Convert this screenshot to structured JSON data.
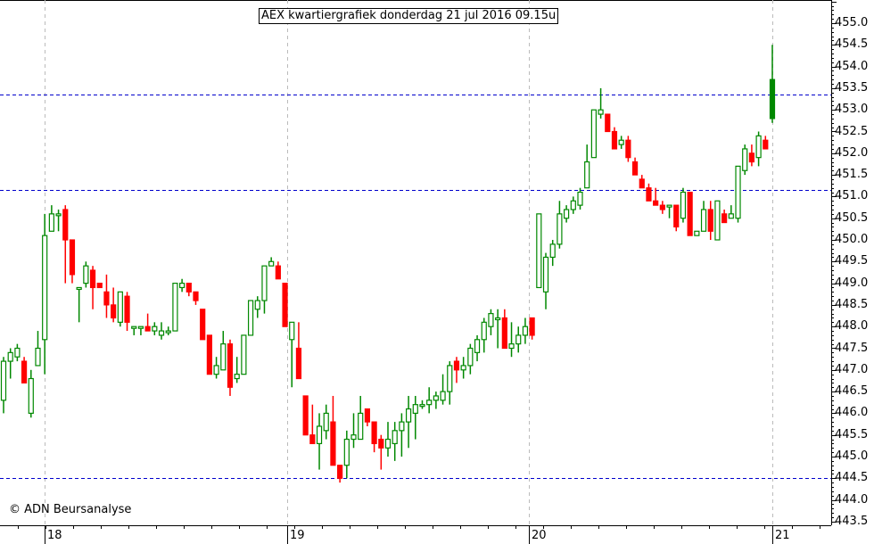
{
  "chart_data": {
    "type": "candlestick",
    "title": "AEX kwartiergrafiek donderdag 21 jul 2016 09.15u",
    "xlabel": "",
    "ylabel": "",
    "ylim": [
      443.3,
      455.5
    ],
    "y_ticks": [
      "455.0",
      "454.5",
      "454.0",
      "453.5",
      "453.0",
      "452.5",
      "452.0",
      "451.5",
      "451.0",
      "450.5",
      "450.0",
      "449.5",
      "449.0",
      "448.5",
      "448.0",
      "447.5",
      "447.0",
      "446.5",
      "446.0",
      "445.5",
      "445.0",
      "444.5",
      "444.0",
      "443.5"
    ],
    "x_ticks": [
      "18",
      "19",
      "20",
      "21"
    ],
    "horizontal_lines": [
      453.35,
      451.15,
      444.5
    ],
    "grid": "vertical dashed at day boundaries",
    "up_color": "#008800",
    "down_color": "#ff0000",
    "line_color": "#0000cc",
    "candles": [
      {
        "o": 446.3,
        "h": 447.3,
        "l": 446.0,
        "c": 447.2
      },
      {
        "o": 447.2,
        "h": 447.5,
        "l": 446.8,
        "c": 447.4
      },
      {
        "o": 447.3,
        "h": 447.6,
        "l": 447.2,
        "c": 447.5
      },
      {
        "o": 447.2,
        "h": 447.3,
        "l": 446.7,
        "c": 446.7
      },
      {
        "o": 446.0,
        "h": 447.0,
        "l": 445.9,
        "c": 446.8
      },
      {
        "o": 447.1,
        "h": 447.9,
        "l": 447.1,
        "c": 447.5
      },
      {
        "o": 447.7,
        "h": 450.6,
        "l": 446.9,
        "c": 450.1
      },
      {
        "o": 450.2,
        "h": 450.8,
        "l": 450.2,
        "c": 450.6
      },
      {
        "o": 450.6,
        "h": 450.7,
        "l": 450.2,
        "c": 450.6
      },
      {
        "o": 450.7,
        "h": 450.8,
        "l": 449.0,
        "c": 450.0
      },
      {
        "o": 450.0,
        "h": 449.5,
        "l": 449.0,
        "c": 449.2
      },
      {
        "o": 448.9,
        "h": 448.9,
        "l": 448.1,
        "c": 448.9
      },
      {
        "o": 449.0,
        "h": 449.5,
        "l": 448.9,
        "c": 449.4
      },
      {
        "o": 449.3,
        "h": 449.4,
        "l": 448.4,
        "c": 448.9
      },
      {
        "o": 449.0,
        "h": 449.0,
        "l": 448.9,
        "c": 448.9
      },
      {
        "o": 448.8,
        "h": 449.2,
        "l": 448.2,
        "c": 448.5
      },
      {
        "o": 448.5,
        "h": 448.9,
        "l": 448.1,
        "c": 448.2
      },
      {
        "o": 448.1,
        "h": 448.7,
        "l": 448.0,
        "c": 448.8
      },
      {
        "o": 448.7,
        "h": 448.8,
        "l": 447.9,
        "c": 448.1
      },
      {
        "o": 448.0,
        "h": 448.0,
        "l": 447.8,
        "c": 448.0
      },
      {
        "o": 448.0,
        "h": 448.0,
        "l": 447.8,
        "c": 448.0
      },
      {
        "o": 448.0,
        "h": 448.3,
        "l": 447.9,
        "c": 447.9
      },
      {
        "o": 447.9,
        "h": 448.1,
        "l": 447.8,
        "c": 448.0
      },
      {
        "o": 447.8,
        "h": 448.1,
        "l": 447.7,
        "c": 447.9
      },
      {
        "o": 447.9,
        "h": 448.0,
        "l": 447.8,
        "c": 447.9
      },
      {
        "o": 447.9,
        "h": 449.0,
        "l": 447.9,
        "c": 449.0
      },
      {
        "o": 448.9,
        "h": 449.1,
        "l": 448.8,
        "c": 449.0
      },
      {
        "o": 449.0,
        "h": 449.0,
        "l": 448.7,
        "c": 448.8
      },
      {
        "o": 448.8,
        "h": 448.8,
        "l": 448.5,
        "c": 448.6
      },
      {
        "o": 448.4,
        "h": 448.4,
        "l": 447.7,
        "c": 447.7
      },
      {
        "o": 447.8,
        "h": 447.8,
        "l": 446.9,
        "c": 446.9
      },
      {
        "o": 446.9,
        "h": 447.3,
        "l": 446.8,
        "c": 447.1
      },
      {
        "o": 447.0,
        "h": 447.9,
        "l": 447.0,
        "c": 447.6
      },
      {
        "o": 447.6,
        "h": 447.7,
        "l": 446.4,
        "c": 446.6
      },
      {
        "o": 446.8,
        "h": 447.3,
        "l": 446.7,
        "c": 446.9
      },
      {
        "o": 446.9,
        "h": 447.8,
        "l": 446.9,
        "c": 447.8
      },
      {
        "o": 447.8,
        "h": 448.6,
        "l": 447.8,
        "c": 448.6
      },
      {
        "o": 448.4,
        "h": 448.7,
        "l": 448.2,
        "c": 448.6
      },
      {
        "o": 448.6,
        "h": 449.4,
        "l": 448.3,
        "c": 449.4
      },
      {
        "o": 449.4,
        "h": 449.6,
        "l": 449.4,
        "c": 449.5
      },
      {
        "o": 449.4,
        "h": 449.5,
        "l": 449.1,
        "c": 449.1
      },
      {
        "o": 449.0,
        "h": 449.0,
        "l": 448.0,
        "c": 448.0
      },
      {
        "o": 447.7,
        "h": 447.7,
        "l": 446.6,
        "c": 448.1
      },
      {
        "o": 447.5,
        "h": 448.1,
        "l": 446.8,
        "c": 446.8
      },
      {
        "o": 446.4,
        "h": 446.4,
        "l": 445.5,
        "c": 445.5
      },
      {
        "o": 445.5,
        "h": 446.2,
        "l": 445.5,
        "c": 445.3
      },
      {
        "o": 445.3,
        "h": 446.0,
        "l": 444.7,
        "c": 445.7
      },
      {
        "o": 445.6,
        "h": 446.2,
        "l": 445.4,
        "c": 446.0
      },
      {
        "o": 445.8,
        "h": 446.4,
        "l": 444.9,
        "c": 444.8
      },
      {
        "o": 444.8,
        "h": 444.8,
        "l": 444.4,
        "c": 444.5
      },
      {
        "o": 444.8,
        "h": 445.6,
        "l": 444.5,
        "c": 445.4
      },
      {
        "o": 445.4,
        "h": 446.0,
        "l": 445.2,
        "c": 445.5
      },
      {
        "o": 445.4,
        "h": 446.4,
        "l": 445.4,
        "c": 446.0
      },
      {
        "o": 446.1,
        "h": 446.1,
        "l": 445.7,
        "c": 445.8
      },
      {
        "o": 445.8,
        "h": 445.8,
        "l": 445.1,
        "c": 445.3
      },
      {
        "o": 445.4,
        "h": 445.5,
        "l": 444.7,
        "c": 445.2
      },
      {
        "o": 445.2,
        "h": 445.8,
        "l": 445.0,
        "c": 445.4
      },
      {
        "o": 445.3,
        "h": 445.8,
        "l": 444.9,
        "c": 445.6
      },
      {
        "o": 445.6,
        "h": 446.0,
        "l": 445.0,
        "c": 445.8
      },
      {
        "o": 445.8,
        "h": 446.4,
        "l": 445.2,
        "c": 446.1
      },
      {
        "o": 446.0,
        "h": 446.4,
        "l": 445.4,
        "c": 446.2
      },
      {
        "o": 446.2,
        "h": 446.3,
        "l": 446.1,
        "c": 446.2
      },
      {
        "o": 446.2,
        "h": 446.6,
        "l": 446.0,
        "c": 446.3
      },
      {
        "o": 446.3,
        "h": 446.5,
        "l": 446.1,
        "c": 446.4
      },
      {
        "o": 446.3,
        "h": 446.9,
        "l": 446.2,
        "c": 446.5
      },
      {
        "o": 446.5,
        "h": 447.2,
        "l": 446.2,
        "c": 447.1
      },
      {
        "o": 447.2,
        "h": 447.3,
        "l": 446.7,
        "c": 447.0
      },
      {
        "o": 447.0,
        "h": 447.3,
        "l": 446.8,
        "c": 447.1
      },
      {
        "o": 447.1,
        "h": 447.6,
        "l": 446.9,
        "c": 447.5
      },
      {
        "o": 447.4,
        "h": 447.8,
        "l": 447.2,
        "c": 447.7
      },
      {
        "o": 447.7,
        "h": 448.2,
        "l": 447.4,
        "c": 448.1
      },
      {
        "o": 448.0,
        "h": 448.4,
        "l": 447.8,
        "c": 448.3
      },
      {
        "o": 448.2,
        "h": 448.4,
        "l": 447.5,
        "c": 448.2
      },
      {
        "o": 448.2,
        "h": 448.4,
        "l": 447.6,
        "c": 447.5
      },
      {
        "o": 447.5,
        "h": 448.1,
        "l": 447.3,
        "c": 447.6
      },
      {
        "o": 447.6,
        "h": 448.0,
        "l": 447.4,
        "c": 447.8
      },
      {
        "o": 447.8,
        "h": 448.2,
        "l": 447.6,
        "c": 448.0
      },
      {
        "o": 448.2,
        "h": 448.2,
        "l": 447.7,
        "c": 447.8
      },
      {
        "o": 448.9,
        "h": 450.6,
        "l": 448.9,
        "c": 450.6
      },
      {
        "o": 448.8,
        "h": 449.7,
        "l": 448.4,
        "c": 449.6
      },
      {
        "o": 449.6,
        "h": 450.0,
        "l": 449.4,
        "c": 449.9
      },
      {
        "o": 449.9,
        "h": 450.9,
        "l": 449.8,
        "c": 450.6
      },
      {
        "o": 450.5,
        "h": 450.8,
        "l": 450.4,
        "c": 450.7
      },
      {
        "o": 450.7,
        "h": 451.0,
        "l": 450.6,
        "c": 450.9
      },
      {
        "o": 450.8,
        "h": 451.2,
        "l": 450.7,
        "c": 451.1
      },
      {
        "o": 451.2,
        "h": 452.2,
        "l": 451.2,
        "c": 451.8
      },
      {
        "o": 451.9,
        "h": 453.0,
        "l": 451.9,
        "c": 453.0
      },
      {
        "o": 452.9,
        "h": 453.5,
        "l": 452.8,
        "c": 453.0
      },
      {
        "o": 452.9,
        "h": 452.9,
        "l": 452.5,
        "c": 452.5
      },
      {
        "o": 452.5,
        "h": 452.6,
        "l": 452.1,
        "c": 452.1
      },
      {
        "o": 452.2,
        "h": 452.4,
        "l": 452.1,
        "c": 452.3
      },
      {
        "o": 452.3,
        "h": 452.4,
        "l": 451.8,
        "c": 451.9
      },
      {
        "o": 451.8,
        "h": 451.9,
        "l": 451.5,
        "c": 451.5
      },
      {
        "o": 451.4,
        "h": 451.5,
        "l": 451.2,
        "c": 451.2
      },
      {
        "o": 451.2,
        "h": 451.3,
        "l": 450.9,
        "c": 450.9
      },
      {
        "o": 450.9,
        "h": 451.2,
        "l": 450.8,
        "c": 450.8
      },
      {
        "o": 450.8,
        "h": 450.9,
        "l": 450.6,
        "c": 450.7
      },
      {
        "o": 450.8,
        "h": 450.8,
        "l": 450.5,
        "c": 450.8
      },
      {
        "o": 450.8,
        "h": 450.8,
        "l": 450.2,
        "c": 450.3
      },
      {
        "o": 450.5,
        "h": 451.2,
        "l": 450.4,
        "c": 451.1
      },
      {
        "o": 451.1,
        "h": 451.1,
        "l": 450.2,
        "c": 450.1
      },
      {
        "o": 450.1,
        "h": 450.2,
        "l": 450.1,
        "c": 450.2
      },
      {
        "o": 450.2,
        "h": 450.9,
        "l": 450.2,
        "c": 450.7
      },
      {
        "o": 450.7,
        "h": 450.9,
        "l": 450.0,
        "c": 450.2
      },
      {
        "o": 450.0,
        "h": 450.9,
        "l": 450.0,
        "c": 450.9
      },
      {
        "o": 450.6,
        "h": 450.7,
        "l": 450.4,
        "c": 450.4
      },
      {
        "o": 450.5,
        "h": 450.8,
        "l": 450.5,
        "c": 450.6
      },
      {
        "o": 450.5,
        "h": 451.2,
        "l": 450.4,
        "c": 451.7
      },
      {
        "o": 451.6,
        "h": 452.2,
        "l": 451.5,
        "c": 452.1
      },
      {
        "o": 452.0,
        "h": 452.2,
        "l": 451.7,
        "c": 451.8
      },
      {
        "o": 451.9,
        "h": 452.5,
        "l": 451.7,
        "c": 452.4
      },
      {
        "o": 452.3,
        "h": 452.4,
        "l": 452.2,
        "c": 452.1
      },
      {
        "o": 452.8,
        "h": 454.5,
        "l": 452.7,
        "c": 453.7
      }
    ]
  },
  "header": {
    "title": "AEX kwartiergrafiek donderdag 21 jul 2016 09.15u"
  },
  "footer": {
    "copyright": "© ADN Beursanalyse"
  },
  "axis": {
    "y_labels": [
      "455.0",
      "454.5",
      "454.0",
      "453.5",
      "453.0",
      "452.5",
      "452.0",
      "451.5",
      "451.0",
      "450.5",
      "450.0",
      "449.5",
      "449.0",
      "448.5",
      "448.0",
      "447.5",
      "447.0",
      "446.5",
      "446.0",
      "445.5",
      "445.0",
      "444.5",
      "444.0",
      "443.5"
    ],
    "x_labels": [
      "18",
      "19",
      "20",
      "21"
    ]
  }
}
